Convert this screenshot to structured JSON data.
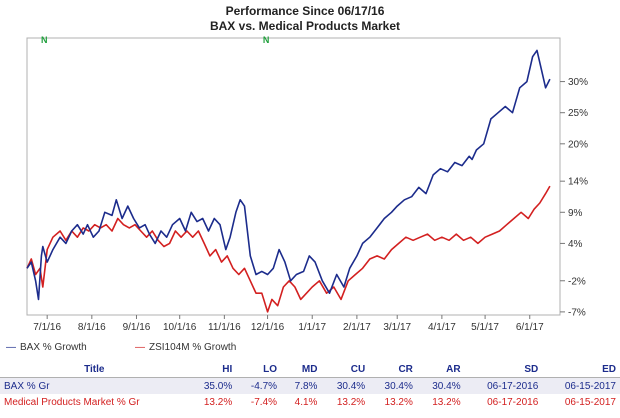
{
  "chart_data": {
    "type": "line",
    "title": "Performance Since 06/17/16",
    "subtitle": "BAX  vs.  Medical Products Market",
    "xlabel": "",
    "ylabel": "",
    "x_tick_labels": [
      "7/1/16",
      "8/1/16",
      "9/1/16",
      "10/1/16",
      "11/1/16",
      "12/1/16",
      "1/1/17",
      "2/1/17",
      "3/1/17",
      "4/1/17",
      "5/1/17",
      "6/1/17"
    ],
    "x_ticks": [
      "2016-07-01",
      "2016-08-01",
      "2016-09-01",
      "2016-10-01",
      "2016-11-01",
      "2016-12-01",
      "2017-01-01",
      "2017-02-01",
      "2017-03-01",
      "2017-04-01",
      "2017-05-01",
      "2017-06-01"
    ],
    "xlim": [
      "2016-06-17",
      "2017-06-22"
    ],
    "y_tick_labels": [
      "-7%",
      "-2%",
      "4%",
      "9%",
      "14%",
      "20%",
      "25%",
      "30%"
    ],
    "y_ticks": [
      -7,
      -2,
      4,
      9,
      14,
      20,
      25,
      30
    ],
    "ylim": [
      -7.5,
      37
    ],
    "grid": false,
    "legend_position": "bottom-left",
    "markers": [
      {
        "label": "N",
        "date": "2016-06-29",
        "color": "#1e9e3a"
      },
      {
        "label": "N",
        "date": "2016-11-30",
        "color": "#1e9e3a"
      }
    ],
    "series": [
      {
        "name": "BAX % Growth",
        "color": "#1c2c8c",
        "x": [
          "2016-06-17",
          "2016-06-20",
          "2016-06-23",
          "2016-06-25",
          "2016-06-27",
          "2016-06-28",
          "2016-07-01",
          "2016-07-05",
          "2016-07-10",
          "2016-07-14",
          "2016-07-18",
          "2016-07-22",
          "2016-07-26",
          "2016-07-29",
          "2016-08-02",
          "2016-08-06",
          "2016-08-10",
          "2016-08-15",
          "2016-08-18",
          "2016-08-22",
          "2016-08-26",
          "2016-08-30",
          "2016-09-03",
          "2016-09-07",
          "2016-09-10",
          "2016-09-14",
          "2016-09-18",
          "2016-09-22",
          "2016-09-26",
          "2016-10-01",
          "2016-10-05",
          "2016-10-09",
          "2016-10-13",
          "2016-10-17",
          "2016-10-21",
          "2016-10-25",
          "2016-10-29",
          "2016-11-02",
          "2016-11-05",
          "2016-11-09",
          "2016-11-12",
          "2016-11-15",
          "2016-11-19",
          "2016-11-23",
          "2016-11-27",
          "2016-12-01",
          "2016-12-05",
          "2016-12-09",
          "2016-12-13",
          "2016-12-17",
          "2016-12-21",
          "2016-12-26",
          "2016-12-30",
          "2017-01-03",
          "2017-01-08",
          "2017-01-13",
          "2017-01-18",
          "2017-01-23",
          "2017-01-27",
          "2017-02-01",
          "2017-02-05",
          "2017-02-10",
          "2017-02-15",
          "2017-02-20",
          "2017-02-25",
          "2017-03-01",
          "2017-03-06",
          "2017-03-11",
          "2017-03-16",
          "2017-03-21",
          "2017-03-26",
          "2017-03-31",
          "2017-04-05",
          "2017-04-10",
          "2017-04-15",
          "2017-04-20",
          "2017-04-22",
          "2017-04-25",
          "2017-04-30",
          "2017-05-05",
          "2017-05-10",
          "2017-05-15",
          "2017-05-20",
          "2017-05-25",
          "2017-05-30",
          "2017-06-03",
          "2017-06-06",
          "2017-06-09",
          "2017-06-12",
          "2017-06-15"
        ],
        "y": [
          0,
          1,
          -2,
          -5,
          2,
          3.5,
          1,
          3,
          5,
          4,
          6,
          7,
          5.5,
          7,
          5,
          6,
          9,
          8.5,
          11,
          8,
          10,
          8,
          6.5,
          7,
          5.5,
          4,
          6,
          5,
          7,
          8,
          6,
          9,
          7.5,
          8,
          6,
          8,
          7,
          3,
          5,
          9,
          11,
          10,
          2,
          -1,
          -0.5,
          -1,
          0,
          3,
          1,
          -2,
          -1,
          -0.5,
          2,
          1,
          -2,
          -4,
          -1,
          -3,
          0,
          2,
          4,
          5,
          6.5,
          8,
          9,
          10,
          11,
          11.5,
          13,
          12,
          15,
          16,
          15.5,
          17,
          16.5,
          18,
          17.5,
          19,
          20,
          24,
          25,
          26,
          25,
          29,
          30,
          34,
          35,
          32,
          29,
          30.4
        ]
      },
      {
        "name": "ZSI104M % Growth",
        "color": "#d32020",
        "x": [
          "2016-06-17",
          "2016-06-20",
          "2016-06-23",
          "2016-06-26",
          "2016-06-28",
          "2016-07-01",
          "2016-07-05",
          "2016-07-10",
          "2016-07-14",
          "2016-07-18",
          "2016-07-22",
          "2016-07-26",
          "2016-07-30",
          "2016-08-03",
          "2016-08-07",
          "2016-08-11",
          "2016-08-15",
          "2016-08-19",
          "2016-08-23",
          "2016-08-27",
          "2016-08-31",
          "2016-09-04",
          "2016-09-08",
          "2016-09-12",
          "2016-09-16",
          "2016-09-20",
          "2016-09-24",
          "2016-09-28",
          "2016-10-02",
          "2016-10-06",
          "2016-10-10",
          "2016-10-14",
          "2016-10-18",
          "2016-10-22",
          "2016-10-26",
          "2016-10-30",
          "2016-11-03",
          "2016-11-07",
          "2016-11-11",
          "2016-11-15",
          "2016-11-19",
          "2016-11-23",
          "2016-11-27",
          "2016-12-01",
          "2016-12-04",
          "2016-12-08",
          "2016-12-12",
          "2016-12-16",
          "2016-12-20",
          "2016-12-24",
          "2016-12-28",
          "2017-01-01",
          "2017-01-06",
          "2017-01-11",
          "2017-01-16",
          "2017-01-21",
          "2017-01-26",
          "2017-01-31",
          "2017-02-05",
          "2017-02-10",
          "2017-02-15",
          "2017-02-20",
          "2017-02-25",
          "2017-03-02",
          "2017-03-07",
          "2017-03-12",
          "2017-03-17",
          "2017-03-22",
          "2017-03-27",
          "2017-04-01",
          "2017-04-06",
          "2017-04-11",
          "2017-04-16",
          "2017-04-21",
          "2017-04-26",
          "2017-05-01",
          "2017-05-06",
          "2017-05-11",
          "2017-05-16",
          "2017-05-21",
          "2017-05-26",
          "2017-05-31",
          "2017-06-04",
          "2017-06-08",
          "2017-06-12",
          "2017-06-15"
        ],
        "y": [
          0,
          1.5,
          -1,
          0,
          -3,
          3,
          5,
          6,
          4.5,
          6,
          5,
          6.5,
          6,
          7,
          6.5,
          7,
          6,
          8,
          7,
          6.5,
          7,
          6,
          5,
          6,
          4.5,
          3.5,
          4,
          6,
          5,
          6,
          5,
          6,
          4,
          2,
          3,
          1,
          2,
          0,
          -1,
          0,
          -2,
          -4,
          -4,
          -7,
          -5,
          -6,
          -3,
          -2,
          -3,
          -5,
          -4,
          -3,
          -2,
          -4,
          -3,
          -5,
          -2,
          -1,
          0,
          1.5,
          2,
          1.5,
          3,
          4,
          5,
          4.5,
          5,
          5.5,
          4.5,
          5,
          4.5,
          5.5,
          4.5,
          5,
          4,
          5,
          5.5,
          6,
          7,
          8,
          9,
          8,
          9.5,
          10.5,
          12,
          13.2
        ]
      }
    ]
  },
  "stats_table": {
    "headers": [
      "Title",
      "HI",
      "LO",
      "MD",
      "CU",
      "CR",
      "AR",
      "SD",
      "ED"
    ],
    "rows": [
      {
        "name": "BAX % Gr",
        "values": [
          "35.0%",
          "-4.7%",
          "7.8%",
          "30.4%",
          "30.4%",
          "30.4%",
          "06-17-2016",
          "06-15-2017"
        ]
      },
      {
        "name": "Medical Products Market % Gr",
        "values": [
          "13.2%",
          "-7.4%",
          "4.1%",
          "13.2%",
          "13.2%",
          "13.2%",
          "06-17-2016",
          "06-15-2017"
        ]
      }
    ]
  }
}
